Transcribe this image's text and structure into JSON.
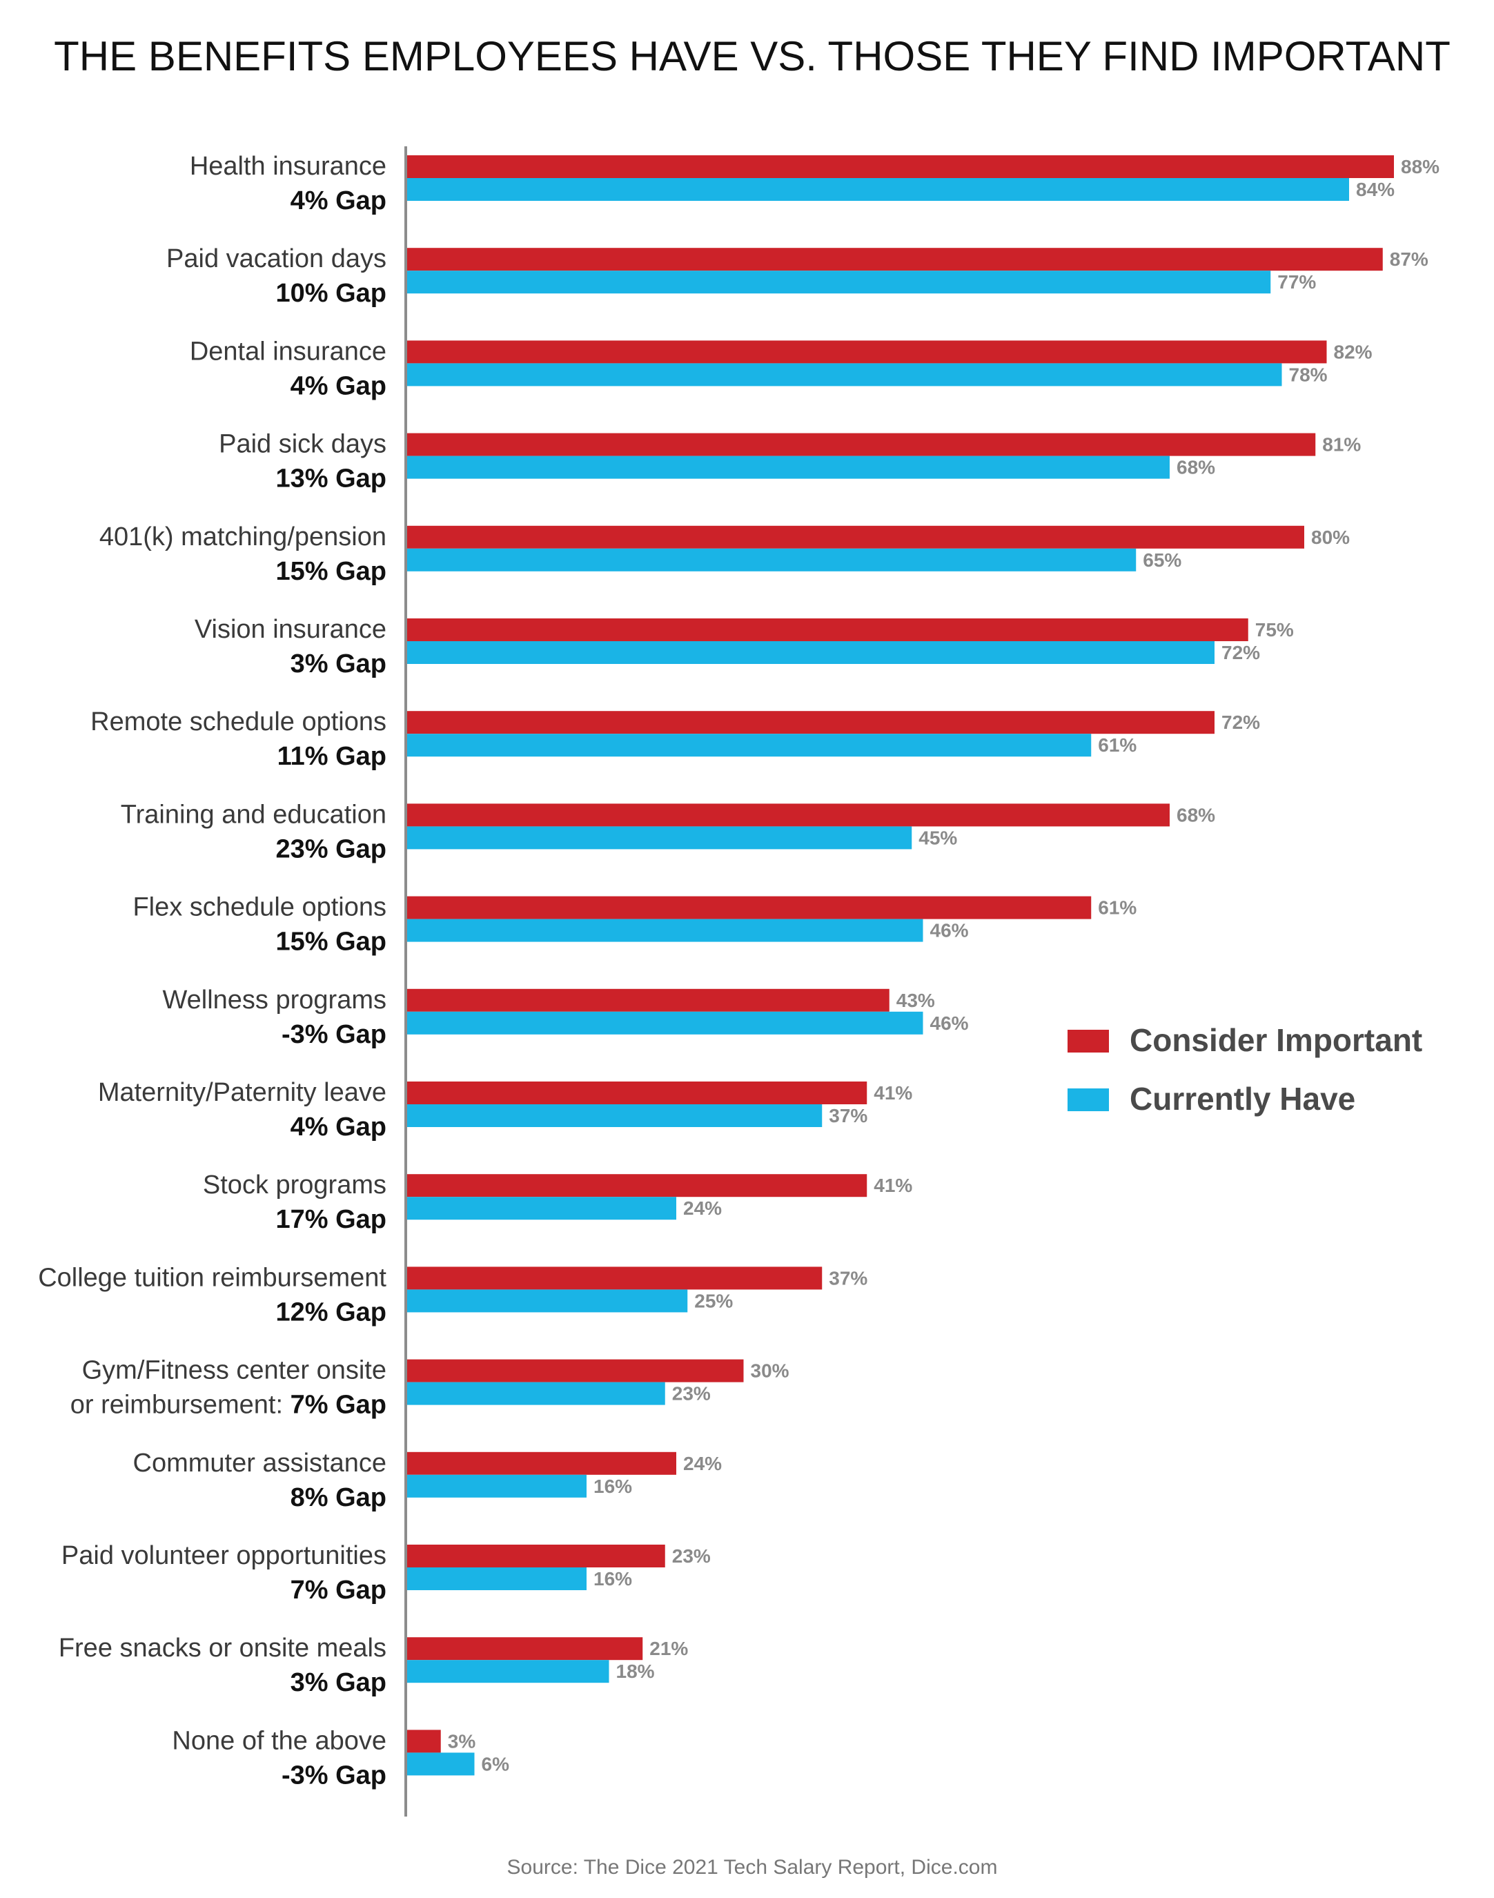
{
  "chart_data": {
    "type": "bar",
    "orientation": "horizontal",
    "title": "THE BENEFITS EMPLOYEES HAVE VS. THOSE THEY FIND IMPORTANT",
    "source": "Source: The Dice 2021 Tech Salary Report, Dice.com",
    "xlim": [
      0,
      100
    ],
    "grid": false,
    "legend_position": "right",
    "categories": [
      {
        "label": "Health insurance",
        "gap_prefix": "",
        "gap": "4% Gap"
      },
      {
        "label": "Paid vacation days",
        "gap_prefix": "",
        "gap": "10% Gap"
      },
      {
        "label": "Dental insurance",
        "gap_prefix": "",
        "gap": "4% Gap"
      },
      {
        "label": "Paid sick days",
        "gap_prefix": "",
        "gap": "13% Gap"
      },
      {
        "label": "401(k) matching/pension",
        "gap_prefix": "",
        "gap": "15% Gap"
      },
      {
        "label": "Vision insurance",
        "gap_prefix": "",
        "gap": "3% Gap"
      },
      {
        "label": "Remote schedule options",
        "gap_prefix": "",
        "gap": "11% Gap"
      },
      {
        "label": "Training and education",
        "gap_prefix": "",
        "gap": "23% Gap"
      },
      {
        "label": "Flex schedule options",
        "gap_prefix": "",
        "gap": "15% Gap"
      },
      {
        "label": "Wellness programs",
        "gap_prefix": "",
        "gap": "-3% Gap"
      },
      {
        "label": "Maternity/Paternity leave",
        "gap_prefix": "",
        "gap": "4% Gap"
      },
      {
        "label": "Stock programs",
        "gap_prefix": "",
        "gap": "17% Gap"
      },
      {
        "label": "College tuition reimbursement",
        "gap_prefix": "",
        "gap": "12% Gap"
      },
      {
        "label": "Gym/Fitness center onsite",
        "gap_prefix": "or reimbursement: ",
        "gap": "7% Gap"
      },
      {
        "label": "Commuter assistance",
        "gap_prefix": "",
        "gap": "8% Gap"
      },
      {
        "label": "Paid volunteer opportunities",
        "gap_prefix": "",
        "gap": "7% Gap"
      },
      {
        "label": "Free snacks or onsite meals",
        "gap_prefix": "",
        "gap": "3% Gap"
      },
      {
        "label": "None of the above",
        "gap_prefix": "",
        "gap": "-3% Gap"
      }
    ],
    "series": [
      {
        "name": "Consider Important",
        "color": "#cc2229",
        "values": [
          88,
          87,
          82,
          81,
          80,
          75,
          72,
          68,
          61,
          43,
          41,
          41,
          37,
          30,
          24,
          23,
          21,
          3
        ],
        "value_labels": [
          "88%",
          "87%",
          "82%",
          "81%",
          "80%",
          "75%",
          "72%",
          "68%",
          "61%",
          "43%",
          "41%",
          "41%",
          "37%",
          "30%",
          "24%",
          "23%",
          "21%",
          "3%"
        ]
      },
      {
        "name": "Currently Have",
        "color": "#1ab4e6",
        "values": [
          84,
          77,
          78,
          68,
          65,
          72,
          61,
          45,
          46,
          46,
          37,
          24,
          25,
          23,
          16,
          16,
          18,
          6
        ],
        "value_labels": [
          "84%",
          "77%",
          "78%",
          "68%",
          "65%",
          "72%",
          "61%",
          "45%",
          "46%",
          "46%",
          "37%",
          "24%",
          "25%",
          "23%",
          "16%",
          "16%",
          "18%",
          "6%"
        ]
      }
    ]
  }
}
